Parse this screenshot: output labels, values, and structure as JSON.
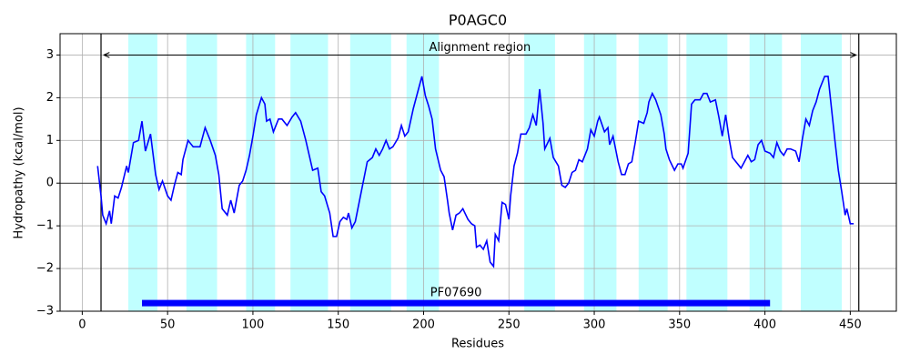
{
  "chart_data": {
    "type": "line",
    "title": "P0AGC0",
    "xlabel": "Residues",
    "ylabel": "Hydropathy (kcal/mol)",
    "color": "#0000ff",
    "x": [
      9,
      11,
      12,
      14,
      16,
      17,
      19,
      21,
      23,
      26,
      27,
      30,
      33,
      35,
      37,
      40,
      43,
      45,
      47,
      50,
      52,
      54,
      56,
      58,
      59,
      62,
      65,
      69,
      72,
      75,
      78,
      80,
      82,
      85,
      87,
      89,
      92,
      94,
      96,
      98,
      100,
      102,
      105,
      107,
      108,
      110,
      112,
      115,
      117,
      120,
      123,
      125,
      128,
      131,
      133,
      135,
      138,
      140,
      142,
      145,
      147,
      149,
      151,
      153,
      155,
      156,
      158,
      160,
      162,
      165,
      167,
      170,
      172,
      174,
      176,
      178,
      180,
      182,
      185,
      187,
      189,
      191,
      194,
      197,
      199,
      201,
      203,
      205,
      207,
      210,
      212,
      214,
      215,
      217,
      219,
      221,
      223,
      226,
      228,
      230,
      231,
      233,
      235,
      237,
      239,
      241,
      242,
      244,
      246,
      248,
      250,
      251,
      253,
      255,
      257,
      260,
      262,
      264,
      266,
      268,
      270,
      271,
      274,
      276,
      279,
      281,
      283,
      285,
      287,
      289,
      291,
      293,
      296,
      298,
      300,
      302,
      303,
      306,
      308,
      309,
      311,
      314,
      316,
      318,
      320,
      322,
      324,
      326,
      329,
      331,
      332,
      334,
      336,
      339,
      341,
      342,
      344,
      347,
      349,
      351,
      352,
      355,
      357,
      359,
      362,
      364,
      366,
      368,
      371,
      373,
      375,
      377,
      379,
      381,
      383,
      386,
      388,
      390,
      392,
      394,
      396,
      398,
      400,
      403,
      405,
      407,
      409,
      411,
      413,
      415,
      418,
      420,
      422,
      424,
      426,
      428,
      430,
      432,
      435,
      437,
      439,
      441,
      443,
      445,
      447,
      448,
      450,
      452
    ],
    "values": [
      0.4,
      -0.3,
      -0.75,
      -0.95,
      -0.65,
      -0.95,
      -0.3,
      -0.35,
      -0.1,
      0.4,
      0.25,
      0.95,
      1.0,
      1.45,
      0.75,
      1.15,
      0.2,
      -0.15,
      0.05,
      -0.3,
      -0.4,
      -0.05,
      0.25,
      0.2,
      0.55,
      1.0,
      0.85,
      0.85,
      1.3,
      1.0,
      0.65,
      0.2,
      -0.6,
      -0.75,
      -0.4,
      -0.7,
      -0.05,
      0.05,
      0.3,
      0.65,
      1.1,
      1.6,
      2.0,
      1.85,
      1.45,
      1.5,
      1.2,
      1.5,
      1.5,
      1.35,
      1.55,
      1.65,
      1.45,
      1.0,
      0.65,
      0.3,
      0.35,
      -0.2,
      -0.3,
      -0.7,
      -1.25,
      -1.25,
      -0.9,
      -0.8,
      -0.85,
      -0.7,
      -1.05,
      -0.9,
      -0.5,
      0.1,
      0.5,
      0.6,
      0.8,
      0.65,
      0.8,
      1.0,
      0.8,
      0.85,
      1.05,
      1.35,
      1.1,
      1.2,
      1.75,
      2.2,
      2.5,
      2.05,
      1.8,
      1.5,
      0.8,
      0.3,
      0.15,
      -0.4,
      -0.7,
      -1.1,
      -0.75,
      -0.7,
      -0.6,
      -0.85,
      -0.95,
      -1.0,
      -1.5,
      -1.45,
      -1.55,
      -1.35,
      -1.85,
      -1.95,
      -1.2,
      -1.35,
      -0.45,
      -0.5,
      -0.85,
      -0.3,
      0.4,
      0.7,
      1.15,
      1.15,
      1.3,
      1.6,
      1.35,
      2.2,
      1.4,
      0.8,
      1.05,
      0.6,
      0.4,
      -0.05,
      -0.1,
      0.0,
      0.25,
      0.3,
      0.55,
      0.5,
      0.8,
      1.25,
      1.1,
      1.45,
      1.55,
      1.2,
      1.3,
      0.9,
      1.1,
      0.5,
      0.2,
      0.2,
      0.45,
      0.5,
      0.95,
      1.45,
      1.4,
      1.65,
      1.9,
      2.1,
      1.95,
      1.6,
      1.15,
      0.8,
      0.55,
      0.3,
      0.45,
      0.45,
      0.35,
      0.7,
      1.85,
      1.95,
      1.95,
      2.1,
      2.1,
      1.9,
      1.95,
      1.55,
      1.1,
      1.6,
      1.05,
      0.6,
      0.5,
      0.35,
      0.5,
      0.65,
      0.5,
      0.55,
      0.9,
      1.0,
      0.75,
      0.7,
      0.6,
      0.95,
      0.75,
      0.65,
      0.8,
      0.8,
      0.75,
      0.5,
      1.05,
      1.5,
      1.35,
      1.7,
      1.9,
      2.2,
      2.5,
      2.5,
      1.75,
      1.0,
      0.3,
      -0.2,
      -0.75,
      -0.6,
      -0.95,
      -0.95
    ],
    "xlim": [
      -13,
      477
    ],
    "ylim": [
      -3,
      3.5
    ],
    "xticks": [
      0,
      50,
      100,
      150,
      200,
      250,
      300,
      350,
      400,
      450
    ],
    "yticks": [
      {
        "value": -3,
        "label": "−3"
      },
      {
        "value": -2,
        "label": "−2"
      },
      {
        "value": -1,
        "label": "−1"
      },
      0,
      1,
      2,
      3
    ],
    "grid": true,
    "hline": 0,
    "helix_color": "#c0ffff",
    "helices": [
      [
        27,
        44
      ],
      [
        61,
        79
      ],
      [
        96,
        113
      ],
      [
        122,
        144
      ],
      [
        157,
        181
      ],
      [
        190,
        209
      ],
      [
        259,
        277
      ],
      [
        294,
        313
      ],
      [
        326,
        343
      ],
      [
        354,
        378
      ],
      [
        391,
        410
      ],
      [
        421,
        445
      ]
    ],
    "alignment_region": {
      "label": "Alignment region",
      "start": 11,
      "end": 455,
      "y": 3
    },
    "domain": {
      "label": "PF07690",
      "start": 35,
      "end": 403,
      "y": -2.81,
      "color": "#0000ff"
    }
  }
}
